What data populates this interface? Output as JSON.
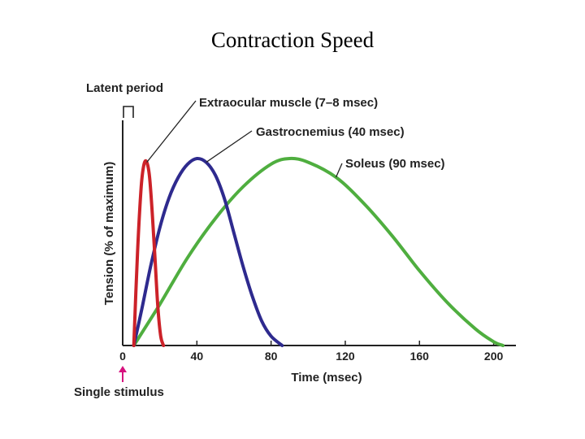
{
  "page": {
    "title": "Contraction Speed"
  },
  "chart_data": {
    "type": "line",
    "title": "Contraction Speed",
    "xlabel": "Time (msec)",
    "ylabel": "Tension (% of maximum)",
    "xlim": [
      0,
      212
    ],
    "ylim": [
      0,
      100
    ],
    "xticks": [
      0,
      40,
      80,
      120,
      160,
      200
    ],
    "grid": false,
    "series": [
      {
        "name": "Extraocular muscle (7–8 msec)",
        "color": "#cc2229",
        "x": [
          6,
          8,
          10,
          11.5,
          13,
          14.5,
          16,
          17.5,
          19,
          20.5,
          22
        ],
        "y": [
          0,
          50,
          85,
          97,
          98,
          90,
          70,
          45,
          20,
          5,
          0
        ]
      },
      {
        "name": "Gastrocnemius (40 msec)",
        "color": "#2e2a8e",
        "x": [
          6,
          10,
          15,
          20,
          25,
          30,
          35,
          40,
          45,
          50,
          55,
          60,
          65,
          70,
          75,
          80,
          86
        ],
        "y": [
          0,
          18,
          42,
          63,
          79,
          90,
          97,
          100,
          98,
          91,
          78,
          60,
          42,
          26,
          13,
          5,
          0
        ]
      },
      {
        "name": "Soleus (90 msec)",
        "color": "#4fae3f",
        "x": [
          6,
          20,
          35,
          50,
          65,
          80,
          90,
          100,
          115,
          130,
          145,
          160,
          175,
          190,
          200,
          205
        ],
        "y": [
          0,
          22,
          47,
          68,
          85,
          97,
          100,
          98,
          90,
          76,
          59,
          40,
          23,
          9,
          2,
          0
        ]
      }
    ],
    "annotations": {
      "latent_period": "Latent period",
      "single_stimulus": "Single stimulus"
    }
  }
}
